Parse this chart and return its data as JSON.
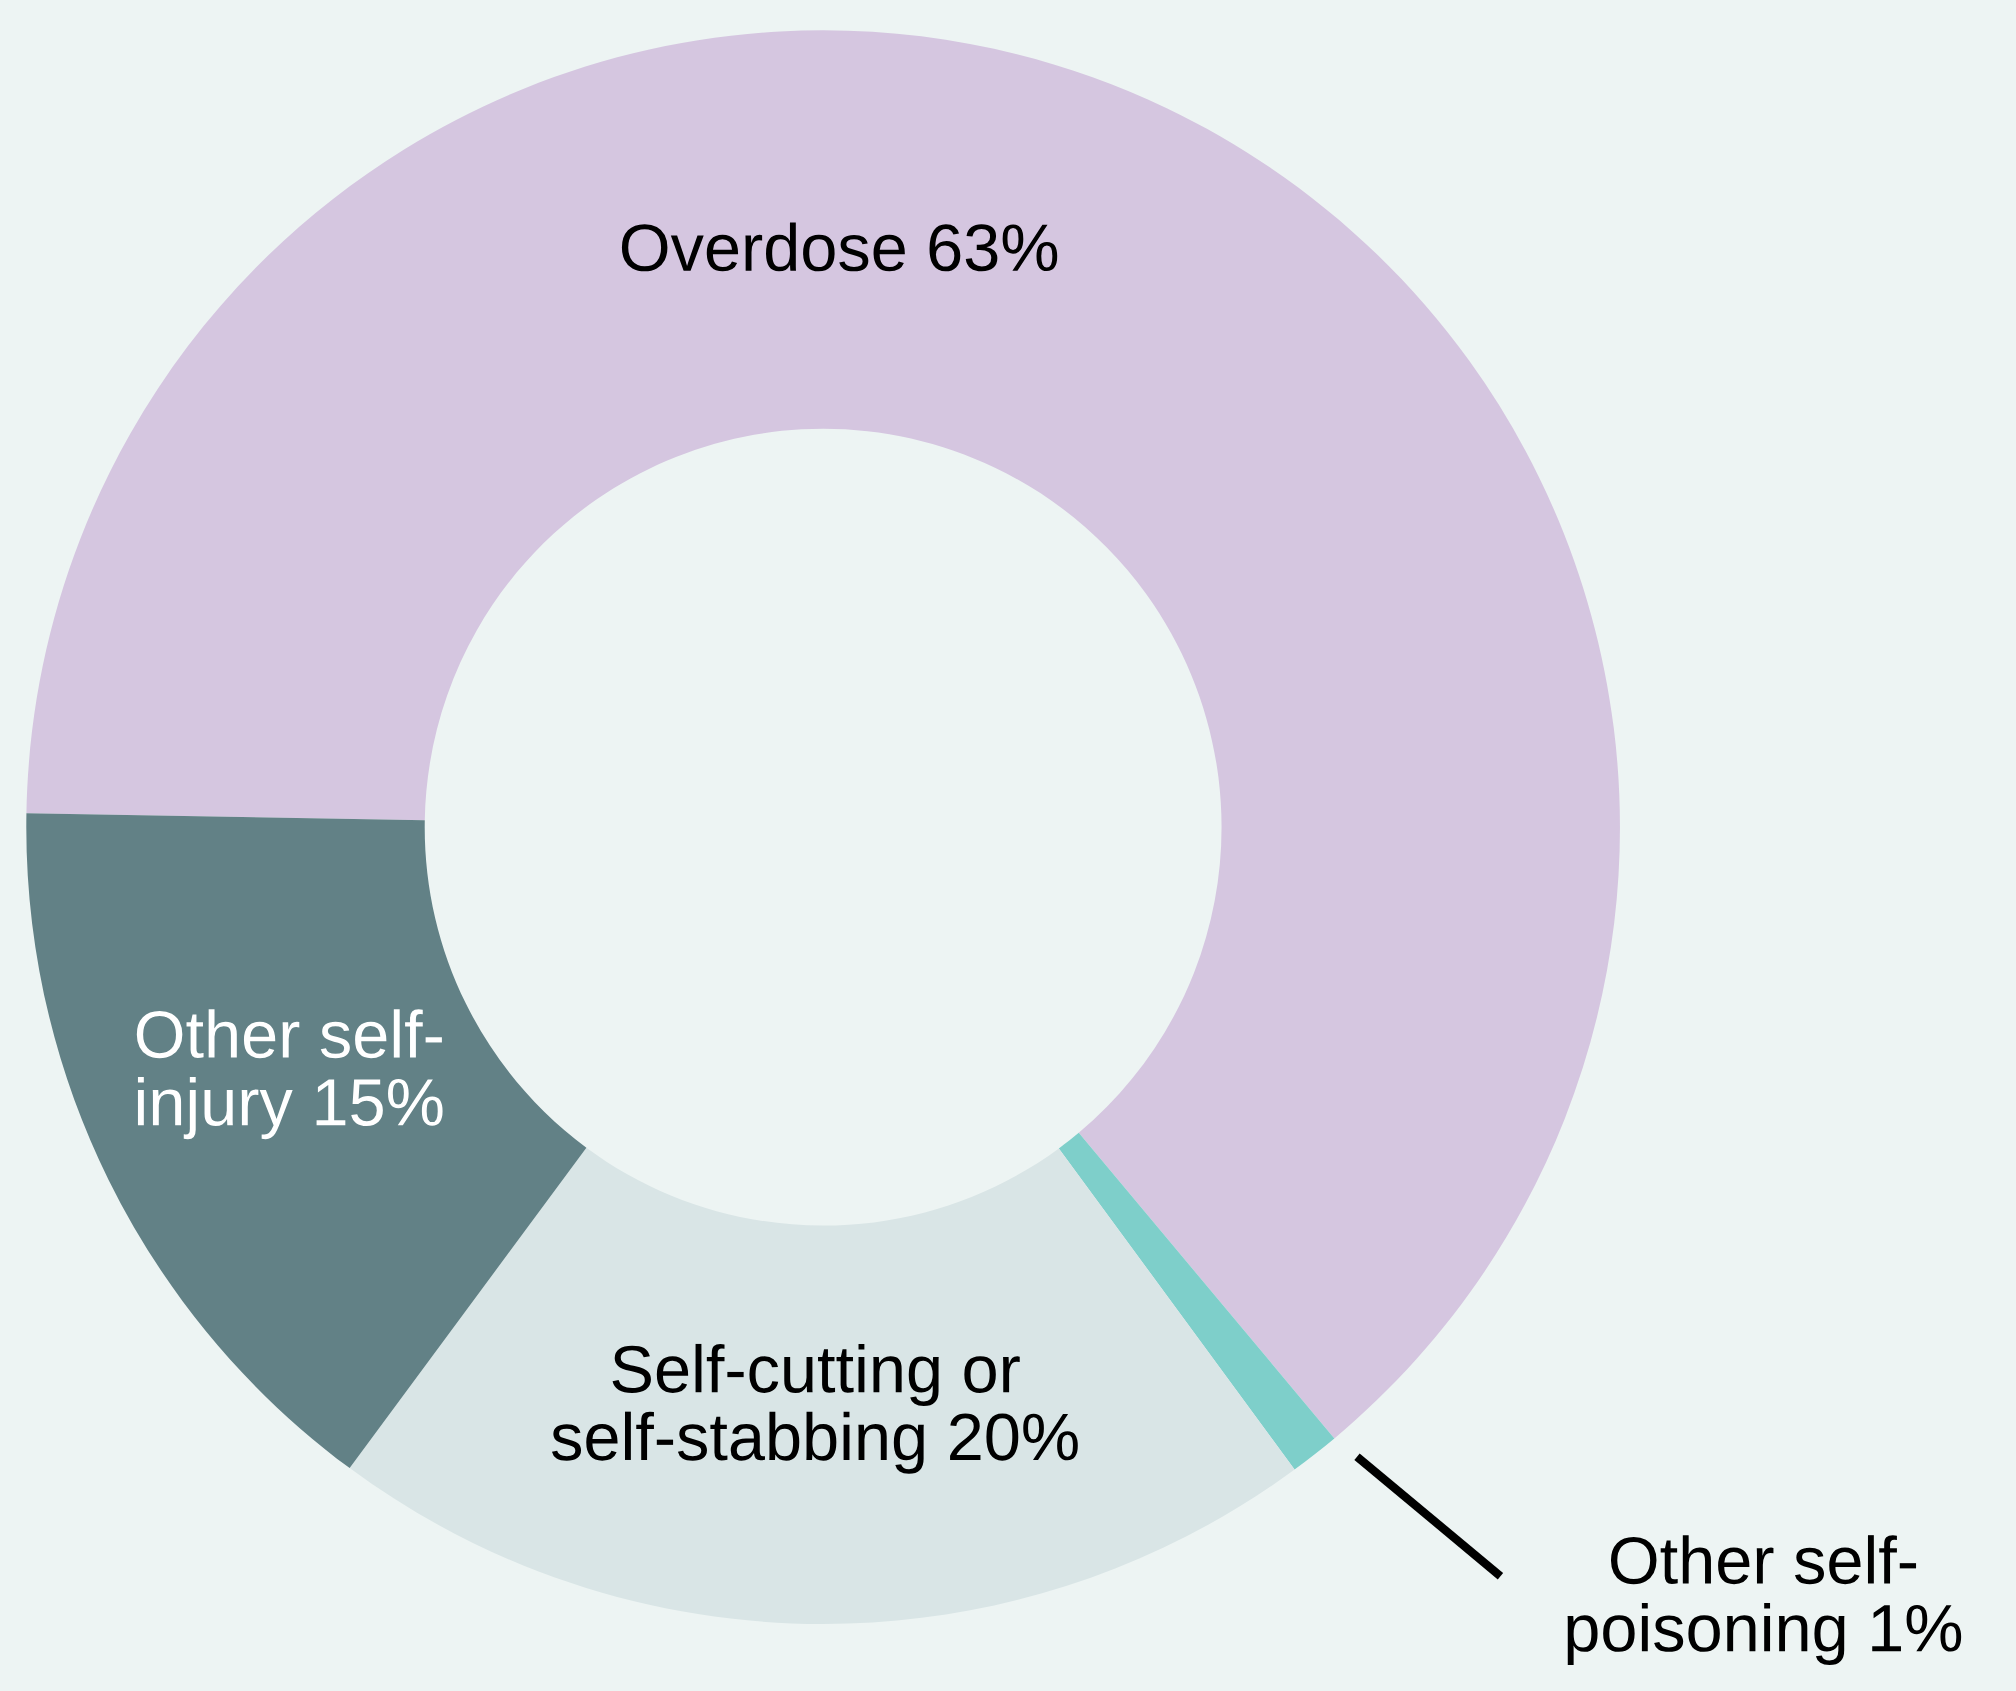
{
  "chart_data": {
    "type": "donut",
    "categories": [
      "Overdose",
      "Other self-\npoisoning",
      "Self-cutting or\nself-stabbing",
      "Other self-\ninjury"
    ],
    "values": [
      63,
      1,
      20,
      15
    ],
    "colors": [
      "#d5c6e0",
      "#7ecfca",
      "#d9e5e6",
      "#628186"
    ],
    "value_labels": [
      "63%",
      "1%",
      "20%",
      "15%"
    ]
  }
}
